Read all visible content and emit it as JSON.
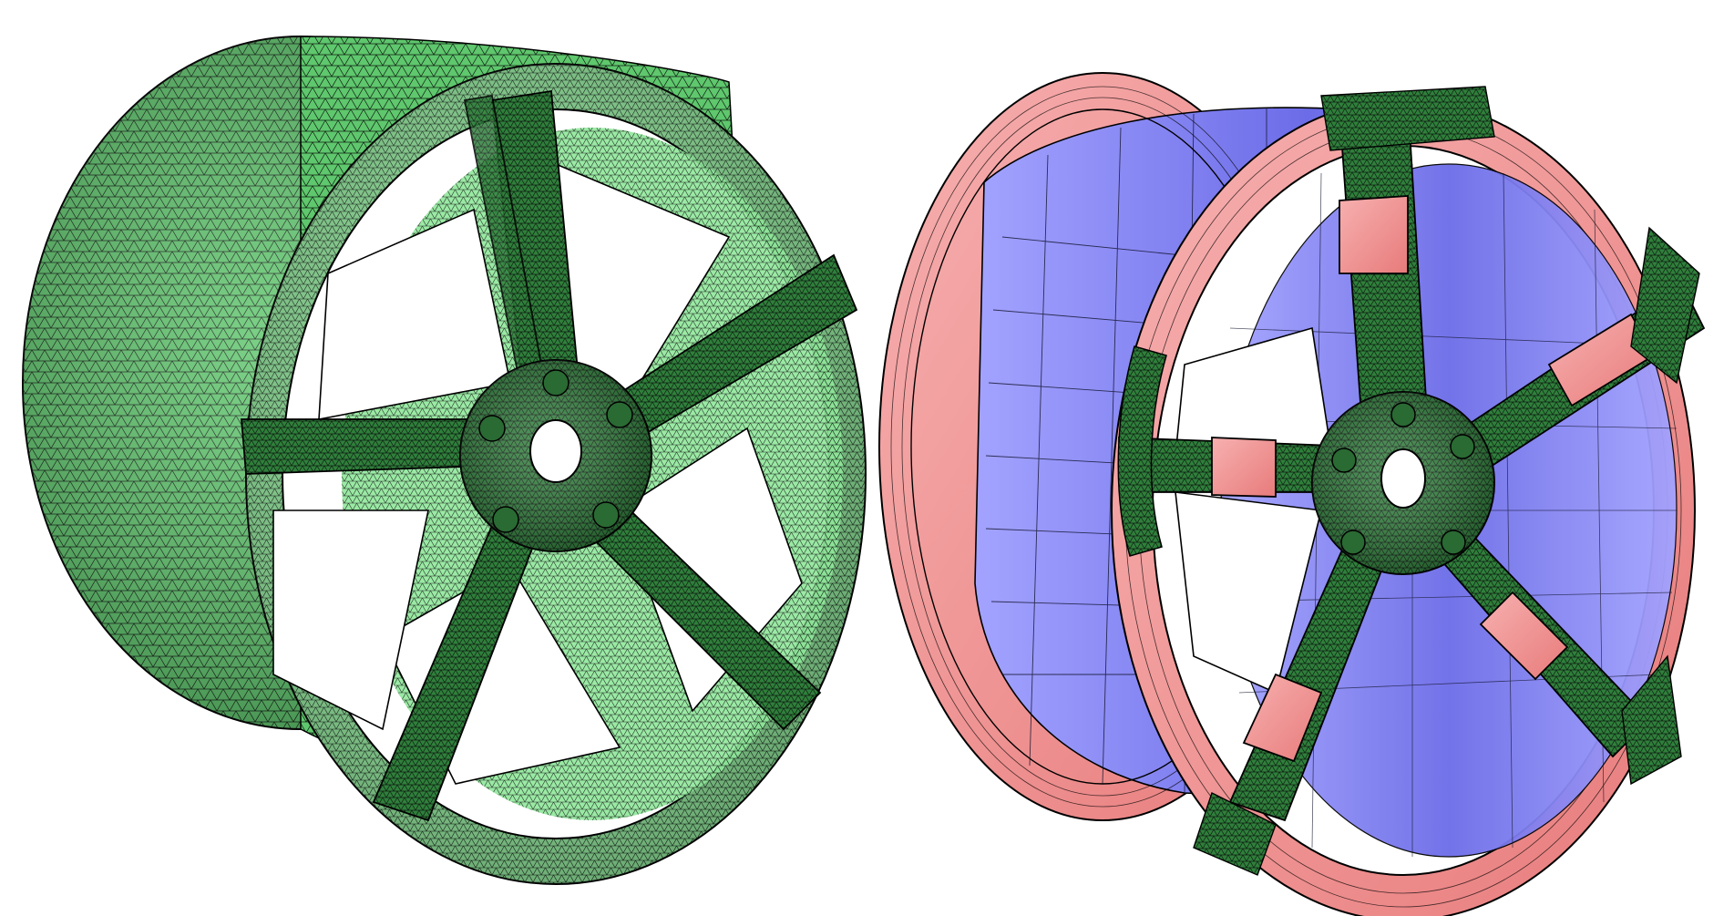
{
  "figure": {
    "panels": [
      {
        "id": "tetrahedral-mesh",
        "mesh_type": "tetrahedral"
      },
      {
        "id": "hybrid-mesh",
        "mesh_type": "hybrid"
      }
    ],
    "colors": {
      "background": "#ffffff",
      "tet_fill": "#5fc76d",
      "tet_fill_light": "#8fe69a",
      "tet_fill_dark": "#2f7f3b",
      "sweep_fill": "#e87b7b",
      "sweep_fill_light": "#f7b0b0",
      "hex_fill": "#6c6ce8",
      "hex_fill_light": "#a3a3ff",
      "mesh_edge": "#0f1f12"
    }
  }
}
